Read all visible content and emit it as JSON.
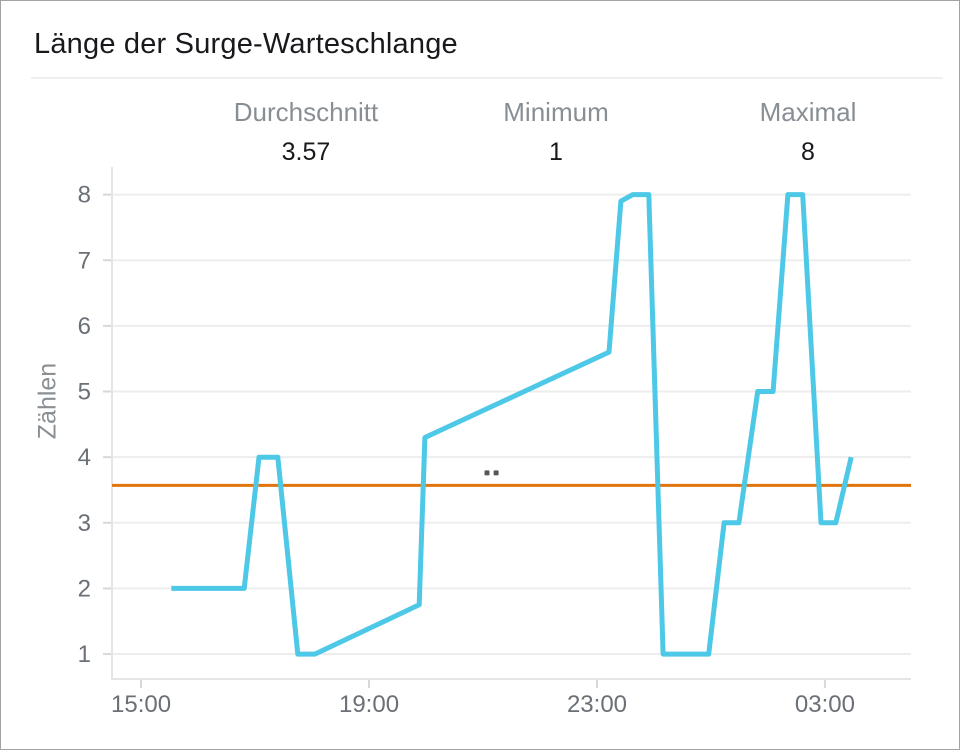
{
  "page": {
    "title": "Länge der Surge-Warteschlange"
  },
  "stats": [
    {
      "label": "Durchschnitt",
      "value": "3.57"
    },
    {
      "label": "Minimum",
      "value": "1"
    },
    {
      "label": "Maximal",
      "value": "8"
    }
  ],
  "chart_data": {
    "type": "line",
    "title": "Länge der Surge-Warteschlange",
    "xlabel": "",
    "ylabel": "Zählen",
    "x_unit": "time of day (HH:MM), hours >24 are past midnight",
    "xlim_hours": [
      14.49,
      28.51
    ],
    "ylim": [
      0.62,
      8.36
    ],
    "grid": "horizontal",
    "legend_position": "none",
    "x_ticks": [
      {
        "hour": 15,
        "label": "15:00"
      },
      {
        "hour": 19,
        "label": "19:00"
      },
      {
        "hour": 23,
        "label": "23:00"
      },
      {
        "hour": 27,
        "label": "03:00"
      }
    ],
    "y_ticks": [
      1,
      2,
      3,
      4,
      5,
      6,
      7,
      8
    ],
    "series": [
      {
        "name": "Länge der Surge-Warteschlange",
        "color": "#4dc8e6",
        "points": [
          [
            15.53,
            2
          ],
          [
            16.81,
            2
          ],
          [
            17.07,
            4
          ],
          [
            17.4,
            4
          ],
          [
            17.75,
            1
          ],
          [
            18.05,
            1
          ],
          [
            19.88,
            1.75
          ],
          [
            19.98,
            4.3
          ],
          [
            23.21,
            5.6
          ],
          [
            23.42,
            7.9
          ],
          [
            23.63,
            8
          ],
          [
            23.91,
            8
          ],
          [
            24.16,
            1
          ],
          [
            24.96,
            1
          ],
          [
            25.23,
            3
          ],
          [
            25.49,
            3
          ],
          [
            25.82,
            5
          ],
          [
            26.09,
            5
          ],
          [
            26.35,
            8
          ],
          [
            26.61,
            8
          ],
          [
            26.93,
            3
          ],
          [
            27.19,
            3
          ],
          [
            27.46,
            4
          ]
        ]
      }
    ],
    "average_line": {
      "label": "Durchschnitt",
      "value": 3.57,
      "color": "#e0740e"
    },
    "summary_stats": {
      "Durchschnitt": 3.57,
      "Minimum": 1,
      "Maximal": 8
    },
    "annotations": {
      "cursor_dots": {
        "x_hours": [
          21.07,
          21.23
        ],
        "value": 3.76,
        "color": "#54585b"
      }
    }
  }
}
